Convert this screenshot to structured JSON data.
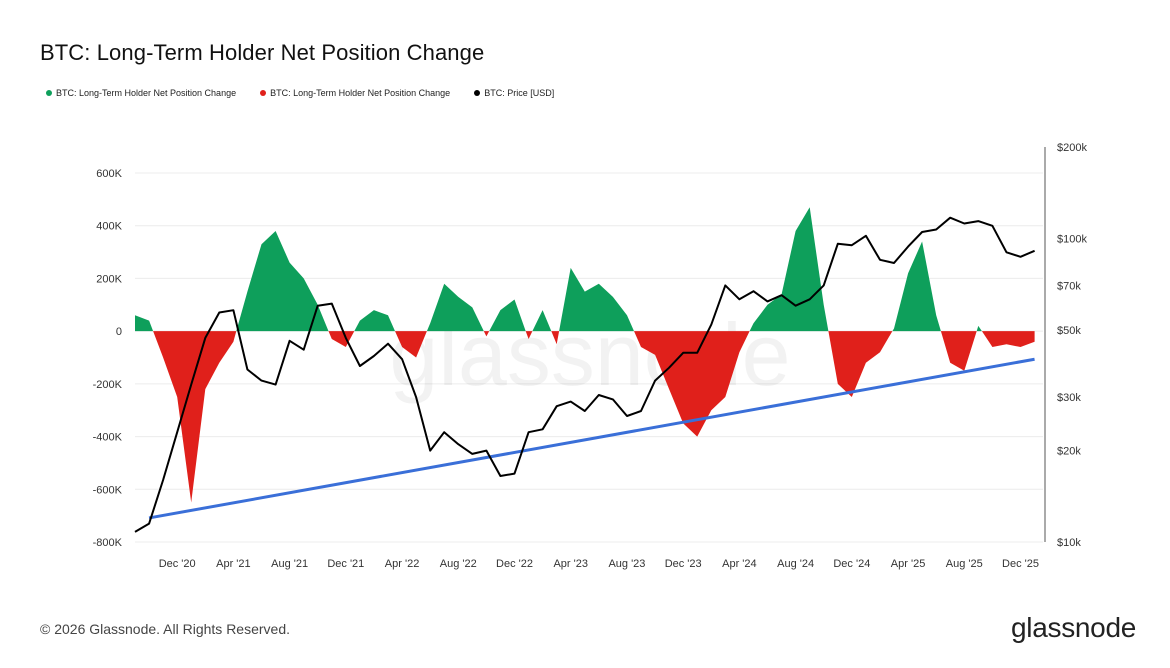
{
  "title": "BTC: Long-Term Holder Net Position Change",
  "legend": [
    {
      "label": "BTC: Long-Term Holder Net Position Change",
      "color": "#0e9f5b"
    },
    {
      "label": "BTC: Long-Term Holder Net Position Change",
      "color": "#e0201b"
    },
    {
      "label": "BTC: Price [USD]",
      "color": "#000000"
    }
  ],
  "watermark": "glassnode",
  "footer": {
    "copyright": "© 2026 Glassnode. All Rights Reserved.",
    "logo": "glassnode"
  },
  "chart_data": {
    "type": "area",
    "title": "BTC: Long-Term Holder Net Position Change",
    "x_tick_labels": [
      "Dec '20",
      "Apr '21",
      "Aug '21",
      "Dec '21",
      "Apr '22",
      "Aug '22",
      "Dec '22",
      "Apr '23",
      "Aug '23",
      "Dec '23",
      "Apr '24",
      "Aug '24",
      "Dec '24",
      "Apr '25",
      "Aug '25",
      "Dec '25"
    ],
    "x_range": [
      "2020-09",
      "2026-01"
    ],
    "y_left": {
      "ticks": [
        "600K",
        "400K",
        "200K",
        "0",
        "-200K",
        "-400K",
        "-600K",
        "-800K"
      ],
      "ylim": [
        -800000,
        600000
      ]
    },
    "y_right": {
      "scale": "log",
      "ticks": [
        "$200k",
        "$100k",
        "$70k",
        "$50k",
        "$30k",
        "$20k",
        "$10k"
      ],
      "ylim": [
        10000,
        200000
      ]
    },
    "colors": {
      "positive": "#0e9f5b",
      "negative": "#e0201b",
      "price": "#000000",
      "trendline": "#3a6fd8"
    },
    "series": [
      {
        "name": "BTC: Long-Term Holder Net Position Change",
        "axis": "left",
        "x": [
          "2020-09",
          "2020-10",
          "2020-11",
          "2020-12",
          "2021-01",
          "2021-02",
          "2021-03",
          "2021-04",
          "2021-05",
          "2021-06",
          "2021-07",
          "2021-08",
          "2021-09",
          "2021-10",
          "2021-11",
          "2021-12",
          "2022-01",
          "2022-02",
          "2022-03",
          "2022-04",
          "2022-05",
          "2022-06",
          "2022-07",
          "2022-08",
          "2022-09",
          "2022-10",
          "2022-11",
          "2022-12",
          "2023-01",
          "2023-02",
          "2023-03",
          "2023-04",
          "2023-05",
          "2023-06",
          "2023-07",
          "2023-08",
          "2023-09",
          "2023-10",
          "2023-11",
          "2023-12",
          "2024-01",
          "2024-02",
          "2024-03",
          "2024-04",
          "2024-05",
          "2024-06",
          "2024-07",
          "2024-08",
          "2024-09",
          "2024-10",
          "2024-11",
          "2024-12",
          "2025-01",
          "2025-02",
          "2025-03",
          "2025-04",
          "2025-05",
          "2025-06",
          "2025-07",
          "2025-08",
          "2025-09",
          "2025-10",
          "2025-11",
          "2025-12",
          "2026-01"
        ],
        "values": [
          60000,
          40000,
          -100000,
          -250000,
          -650000,
          -220000,
          -120000,
          -40000,
          150000,
          330000,
          380000,
          260000,
          200000,
          100000,
          -30000,
          -60000,
          40000,
          80000,
          60000,
          -60000,
          -100000,
          30000,
          180000,
          130000,
          90000,
          -20000,
          80000,
          120000,
          -30000,
          80000,
          -50000,
          240000,
          150000,
          180000,
          130000,
          60000,
          -60000,
          -90000,
          -220000,
          -350000,
          -400000,
          -300000,
          -250000,
          -80000,
          30000,
          100000,
          140000,
          380000,
          470000,
          100000,
          -200000,
          -250000,
          -120000,
          -80000,
          10000,
          220000,
          340000,
          60000,
          -120000,
          -150000,
          20000,
          -60000,
          -50000,
          -60000,
          -40000
        ]
      },
      {
        "name": "BTC: Price [USD]",
        "axis": "right",
        "x": [
          "2020-09",
          "2020-10",
          "2020-11",
          "2020-12",
          "2021-01",
          "2021-02",
          "2021-03",
          "2021-04",
          "2021-05",
          "2021-06",
          "2021-07",
          "2021-08",
          "2021-09",
          "2021-10",
          "2021-11",
          "2021-12",
          "2022-01",
          "2022-02",
          "2022-03",
          "2022-04",
          "2022-05",
          "2022-06",
          "2022-07",
          "2022-08",
          "2022-09",
          "2022-10",
          "2022-11",
          "2022-12",
          "2023-01",
          "2023-02",
          "2023-03",
          "2023-04",
          "2023-05",
          "2023-06",
          "2023-07",
          "2023-08",
          "2023-09",
          "2023-10",
          "2023-11",
          "2023-12",
          "2024-01",
          "2024-02",
          "2024-03",
          "2024-04",
          "2024-05",
          "2024-06",
          "2024-07",
          "2024-08",
          "2024-09",
          "2024-10",
          "2024-11",
          "2024-12",
          "2025-01",
          "2025-02",
          "2025-03",
          "2025-04",
          "2025-05",
          "2025-06",
          "2025-07",
          "2025-08",
          "2025-09",
          "2025-10",
          "2025-11",
          "2025-12",
          "2026-01"
        ],
        "values": [
          10800,
          11500,
          16000,
          23000,
          33000,
          47000,
          57000,
          58000,
          37000,
          34000,
          33000,
          46000,
          43000,
          60000,
          61000,
          47000,
          38000,
          41000,
          45000,
          40000,
          30000,
          20000,
          23000,
          21000,
          19500,
          20000,
          16500,
          16800,
          23000,
          23500,
          28000,
          29000,
          27000,
          30500,
          29500,
          26000,
          27000,
          34000,
          37500,
          42000,
          42000,
          52000,
          70000,
          63000,
          67000,
          62000,
          65000,
          60000,
          63000,
          70000,
          96000,
          95000,
          102000,
          85000,
          83000,
          94000,
          105000,
          107000,
          117000,
          112000,
          114000,
          110000,
          90000,
          87000,
          91000
        ]
      }
    ],
    "trendline": {
      "label": "",
      "from": [
        "2020-10",
        12000
      ],
      "to": [
        "2026-01",
        40000
      ]
    },
    "grid": true,
    "legend_position": "top-left"
  }
}
